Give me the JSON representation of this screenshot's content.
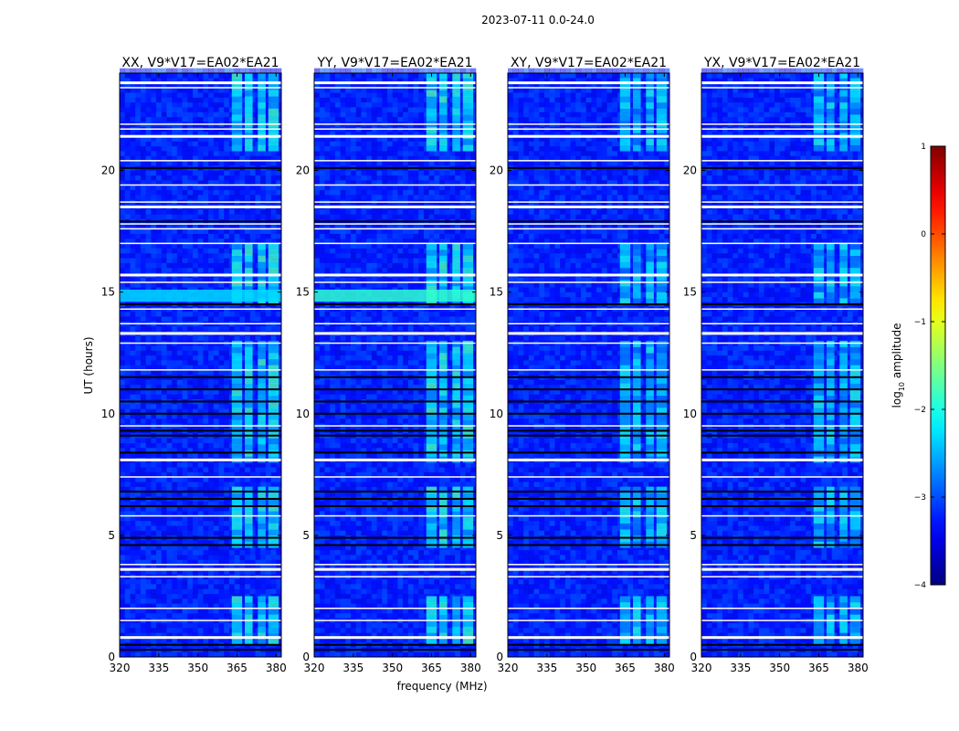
{
  "chart_data": {
    "type": "heatmap",
    "suptitle": "2023-07-11 0.0-24.0",
    "xlabel": "frequency (MHz)",
    "ylabel": "UT (hours)",
    "xlim": [
      320,
      382
    ],
    "ylim": [
      0,
      24
    ],
    "x_ticks": [
      "320",
      "335",
      "350",
      "365",
      "380"
    ],
    "x_tick_values": [
      320,
      335,
      350,
      365,
      380
    ],
    "y_ticks": [
      "0",
      "5",
      "10",
      "15",
      "20"
    ],
    "y_tick_values": [
      0,
      5,
      10,
      15,
      20
    ],
    "panels": [
      {
        "title": "XX, V9*V17=EA02*EA21",
        "bright_band_hours": [
          14.6,
          15.1
        ],
        "bright_band_level": -2.3
      },
      {
        "title": "YY, V9*V17=EA02*EA21",
        "bright_band_hours": [
          14.6,
          15.1
        ],
        "bright_band_level": -1.9
      },
      {
        "title": "XY, V9*V17=EA02*EA21",
        "bright_band_hours": [
          14.6,
          14.6
        ],
        "bright_band_level": -3.5
      },
      {
        "title": "YX, V9*V17=EA02*EA21",
        "bright_band_hours": [
          14.6,
          14.6
        ],
        "bright_band_level": -3.5
      }
    ],
    "background_level": -3.2,
    "rfi_bands_mhz": [
      [
        363,
        367
      ],
      [
        368,
        371
      ],
      [
        373,
        376
      ],
      [
        377,
        381
      ]
    ],
    "rfi_active_hours": [
      [
        0.5,
        2.5
      ],
      [
        4.5,
        7.0
      ],
      [
        8.0,
        13.0
      ],
      [
        14.5,
        17.0
      ],
      [
        20.8,
        24.0
      ]
    ],
    "rfi_level": -2.2,
    "flagged_white_hours": [
      0.8,
      1.5,
      2.0,
      3.3,
      3.6,
      3.8,
      5.8,
      7.4,
      8.1,
      9.5,
      11.8,
      12.9,
      13.3,
      13.7,
      14.3,
      15.4,
      15.7,
      17.0,
      17.6,
      17.8,
      18.5,
      18.7,
      19.4,
      20.4,
      21.4,
      21.7,
      21.9,
      23.4,
      23.6
    ],
    "flagged_black_hours": [
      0.3,
      0.5,
      4.6,
      4.9,
      6.2,
      6.5,
      6.8,
      8.4,
      9.1,
      9.3,
      10.0,
      10.5,
      11.0,
      11.5,
      14.5,
      17.9,
      20.1
    ],
    "colorbar": {
      "label": "log10 amplitude",
      "label_base": "log",
      "label_sub": "10",
      "label_rest": " amplitude",
      "range": [
        -4,
        1
      ],
      "ticks": [
        "1",
        "0",
        "−1",
        "−2",
        "−3",
        "−4"
      ],
      "tick_values": [
        1,
        0,
        -1,
        -2,
        -3,
        -4
      ],
      "colormap": "jet"
    }
  }
}
